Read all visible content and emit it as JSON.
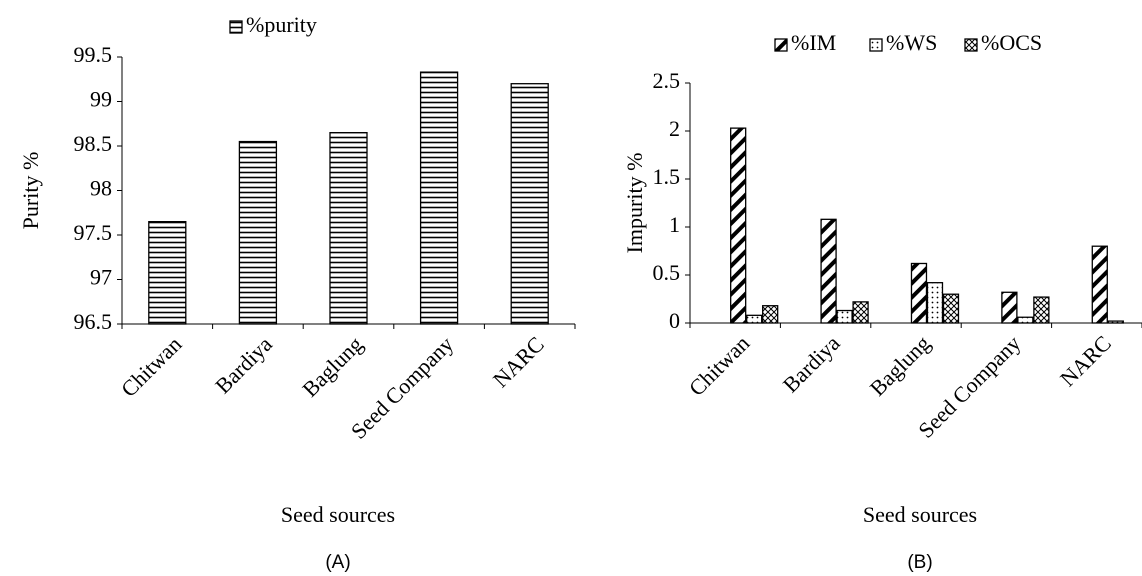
{
  "chart_data": [
    {
      "type": "bar",
      "panel_label": "(A)",
      "x_label": "Seed sources",
      "y_label": "Purity %",
      "categories": [
        "Chitwan",
        "Bardiya",
        "Baglung",
        "Seed Company",
        "NARC"
      ],
      "series": [
        {
          "name": "%purity",
          "color": "#000000",
          "pattern": "horizontal",
          "values": [
            97.65,
            98.55,
            98.65,
            99.33,
            99.2
          ]
        }
      ],
      "ylim": [
        96.5,
        99.5
      ],
      "yticks": [
        96.5,
        97,
        97.5,
        98,
        98.5,
        99,
        99.5
      ],
      "grid": false
    },
    {
      "type": "bar",
      "panel_label": "(B)",
      "x_label": "Seed sources",
      "y_label": "Impurity %",
      "categories": [
        "Chitwan",
        "Bardiya",
        "Baglung",
        "Seed Company",
        "NARC"
      ],
      "series": [
        {
          "name": "%IM",
          "color": "#000000",
          "pattern": "diagonal",
          "values": [
            2.03,
            1.08,
            0.62,
            0.32,
            0.8
          ]
        },
        {
          "name": "%WS",
          "color": "#000000",
          "pattern": "dots",
          "values": [
            0.08,
            0.13,
            0.42,
            0.06,
            0.02
          ]
        },
        {
          "name": "%OCS",
          "color": "#000000",
          "pattern": "cross",
          "values": [
            0.18,
            0.22,
            0.3,
            0.27,
            0
          ]
        }
      ],
      "ylim": [
        0,
        2.5
      ],
      "yticks": [
        0,
        0.5,
        1,
        1.5,
        2,
        2.5
      ],
      "grid": false
    }
  ]
}
